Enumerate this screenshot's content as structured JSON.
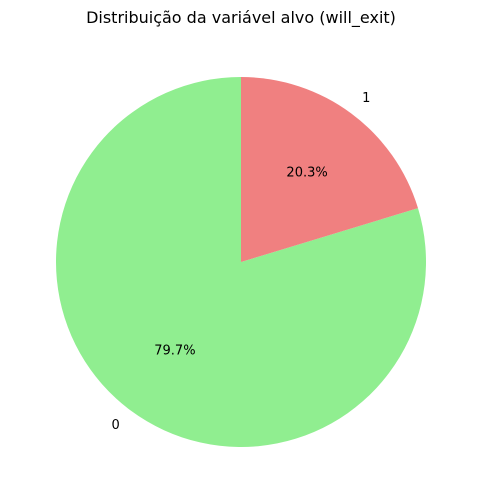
{
  "chart_data": {
    "type": "pie",
    "title": "Distribuição da variável alvo (will_exit)",
    "categories": [
      "0",
      "1"
    ],
    "values": [
      79.7,
      20.3
    ],
    "value_labels": [
      "79.7%",
      "20.3%"
    ],
    "colors": [
      "#90ee90",
      "#f08080"
    ],
    "start_angle_deg": 90,
    "direction": "counterclockwise"
  }
}
